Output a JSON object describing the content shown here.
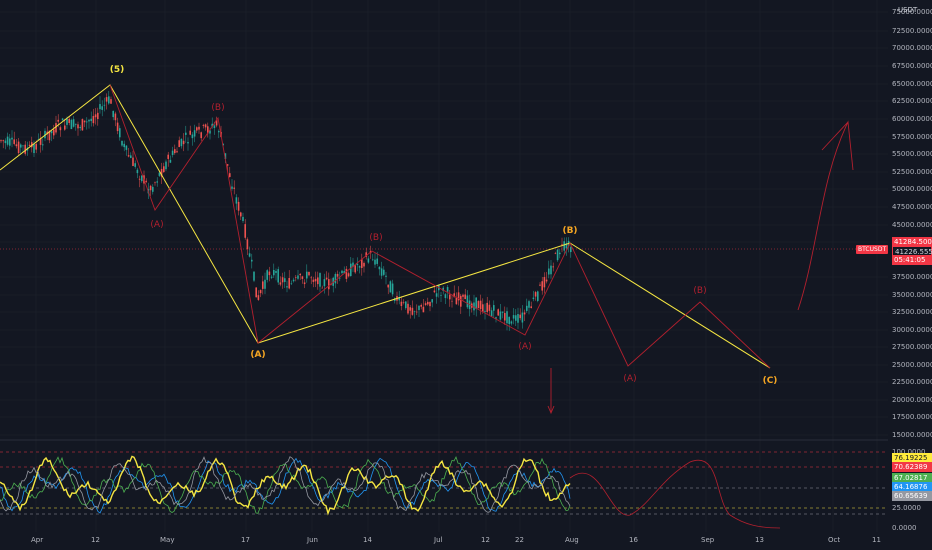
{
  "header": {
    "unit": "USDT"
  },
  "price_scale": {
    "ticks": [
      "75000.00000",
      "72500.00000",
      "70000.00000",
      "67500.00000",
      "65000.00000",
      "62500.00000",
      "60000.00000",
      "57500.00000",
      "55000.00000",
      "52500.00000",
      "50000.00000",
      "47500.00000",
      "45000.00000",
      "42500.00000",
      "37500.00000",
      "35000.00000",
      "32500.00000",
      "30000.00000",
      "27500.00000",
      "25000.00000",
      "22500.00000",
      "20000.00000",
      "17500.00000",
      "15000.00000"
    ],
    "price_line": "41284.50062",
    "ticker": "BTCUSDT",
    "last_price": "41226.55530",
    "countdown": "05:41:05"
  },
  "oscillator": {
    "ticks": [
      "100.0000",
      "75.0000",
      "25.0000",
      "0.0000"
    ],
    "badges": [
      {
        "value": "76.19225",
        "color": "#ffeb3b"
      },
      {
        "value": "70.62389",
        "color": "#f23645"
      },
      {
        "value": "67.02817",
        "color": "#4caf50"
      },
      {
        "value": "64.16876",
        "color": "#2196f3"
      },
      {
        "value": "60.65639",
        "color": "#9598a1"
      }
    ]
  },
  "time_axis": [
    "Apr",
    "12",
    "May",
    "17",
    "Jun",
    "14",
    "Jul",
    "12",
    "22",
    "Aug",
    "16",
    "Sep",
    "13",
    "Oct",
    "11"
  ],
  "waves": {
    "main": [
      "(5)",
      "(A)",
      "(B)",
      "(C)"
    ],
    "sub": [
      "(A)",
      "(B)",
      "(A)",
      "(B)",
      "(A)",
      "(B)"
    ]
  },
  "colors": {
    "up": "#26a69a",
    "down": "#ef5350",
    "yellow": "#f5e642",
    "orange": "#f5a623",
    "red": "#b2202e",
    "bg": "#131722"
  }
}
